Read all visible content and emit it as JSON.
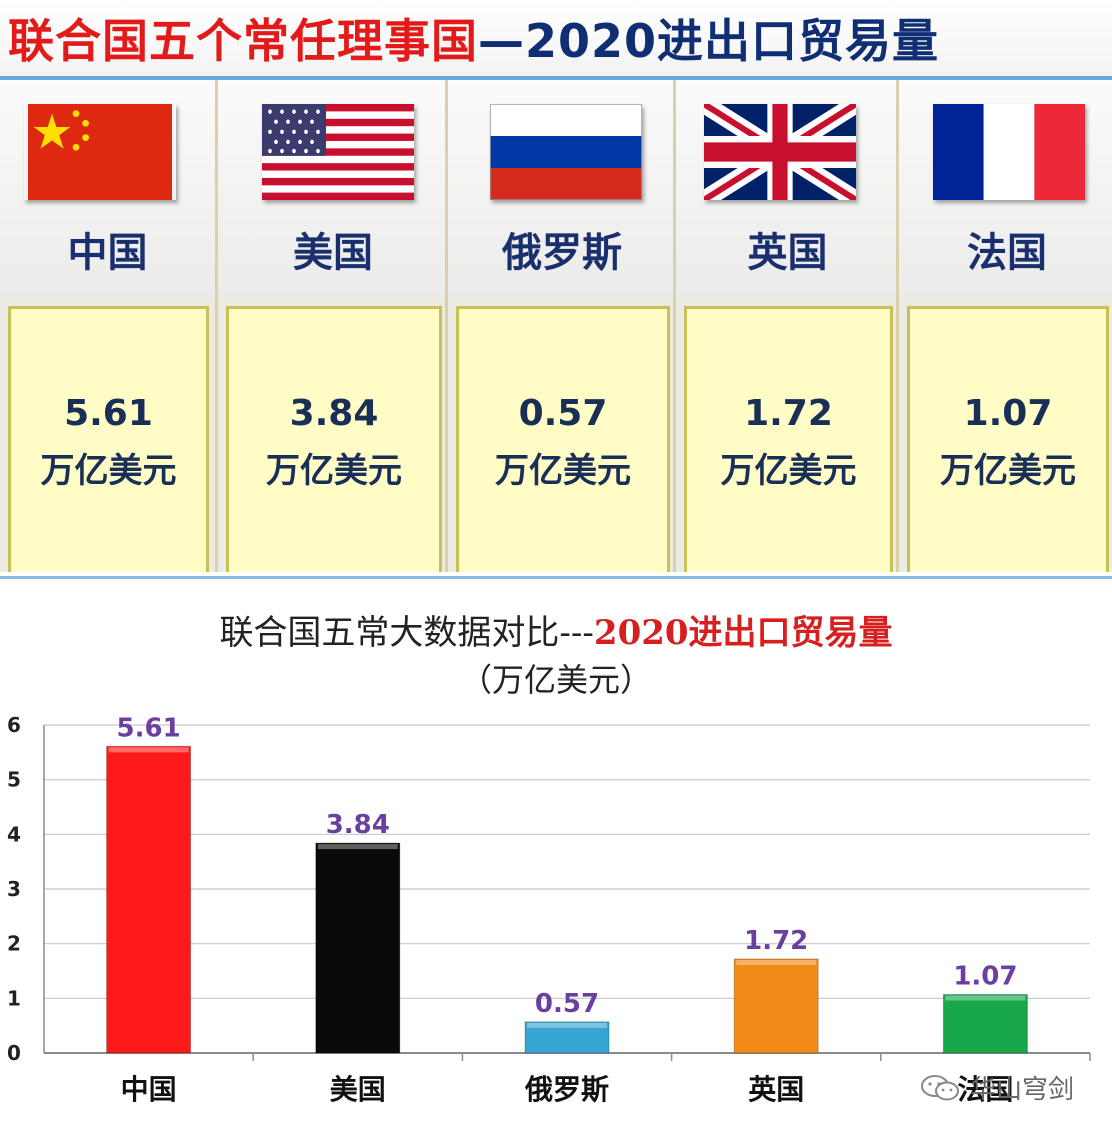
{
  "banner": {
    "title_red": "联合国五个常任理事国",
    "title_blue": "—2020进出口贸易量"
  },
  "countries": [
    {
      "name": "中国",
      "value": "5.61",
      "unit": "万亿美元",
      "flag": "china-flag"
    },
    {
      "name": "美国",
      "value": "3.84",
      "unit": "万亿美元",
      "flag": "usa-flag"
    },
    {
      "name": "俄罗斯",
      "value": "0.57",
      "unit": "万亿美元",
      "flag": "russia-flag"
    },
    {
      "name": "英国",
      "value": "1.72",
      "unit": "万亿美元",
      "flag": "uk-flag"
    },
    {
      "name": "法国",
      "value": "1.07",
      "unit": "万亿美元",
      "flag": "france-flag"
    }
  ],
  "watermark": "华山穹剑",
  "chart_data": {
    "type": "bar",
    "title": "联合国五常大数据对比---",
    "title_highlight": "2020进出口贸易量",
    "subtitle": "（万亿美元）",
    "categories": [
      "中国",
      "美国",
      "俄罗斯",
      "英国",
      "法国"
    ],
    "values": [
      5.61,
      3.84,
      0.57,
      1.72,
      1.07
    ],
    "data_labels": [
      "5.61",
      "3.84",
      "0.57",
      "1.72",
      "1.07"
    ],
    "bar_colors": [
      "#ff1a1a",
      "#0a0a0a",
      "#35a6cf",
      "#f28a17",
      "#18a84a"
    ],
    "label_color": "#6b3fa0",
    "ylim": [
      0,
      6
    ],
    "yticks": [
      0,
      1,
      2,
      3,
      4,
      5,
      6
    ],
    "grid": true,
    "xlabel": "",
    "ylabel": ""
  }
}
